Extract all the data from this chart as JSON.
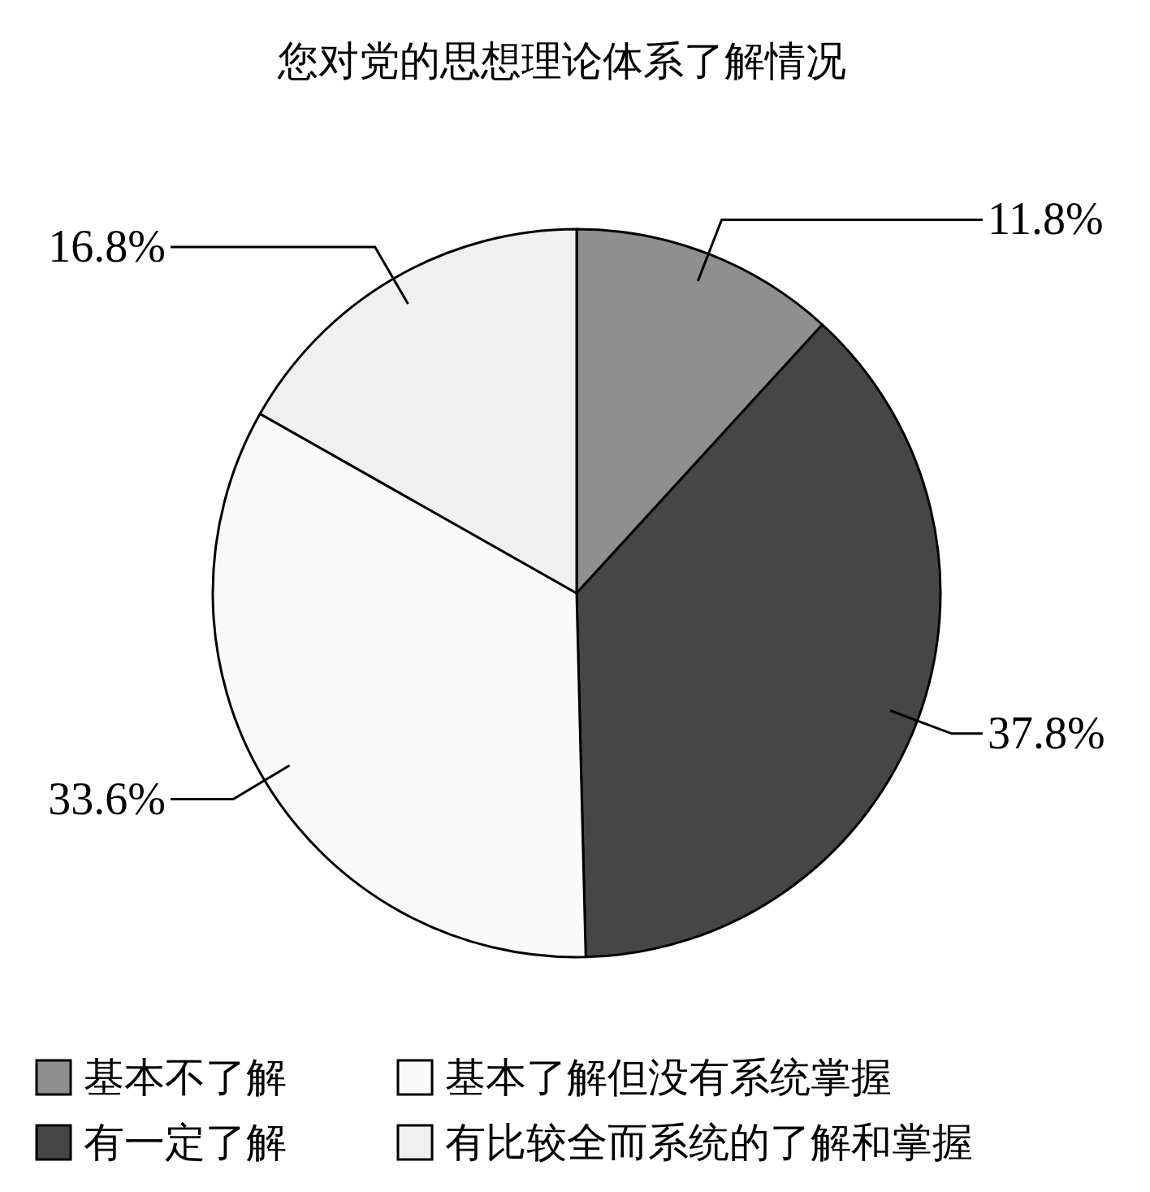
{
  "chart_data": {
    "type": "pie",
    "title": "您对党的思想理论体系了解情况",
    "categories": [
      "基本不了解",
      "有一定了解",
      "基本了解但没有系统掌握",
      "有比较全而系统的了解和掌握"
    ],
    "values": [
      11.8,
      37.8,
      33.6,
      16.8
    ],
    "colors": [
      "#8f8f8f",
      "#464646",
      "#fafafa",
      "#f0f0f0"
    ],
    "value_labels": [
      "11.8%",
      "37.8%",
      "33.6%",
      "16.8%"
    ],
    "legend": "bottom"
  }
}
